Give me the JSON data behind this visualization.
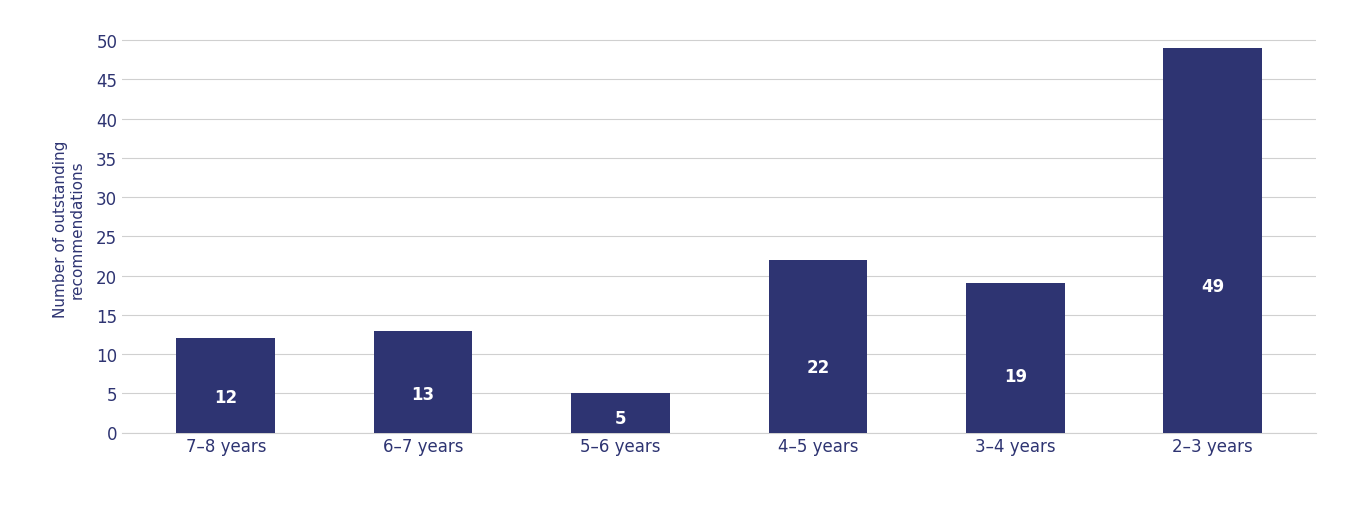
{
  "categories": [
    "7–8 years",
    "6–7 years",
    "5–6 years",
    "4–5 years",
    "3–4 years",
    "2–3 years"
  ],
  "values": [
    12,
    13,
    5,
    22,
    19,
    49
  ],
  "bar_color": "#2e3472",
  "label_color": "#ffffff",
  "ylabel": "Number of outstanding\nrecommendations",
  "ylim": [
    0,
    52
  ],
  "yticks": [
    0,
    5,
    10,
    15,
    20,
    25,
    30,
    35,
    40,
    45,
    50
  ],
  "background_color": "#ffffff",
  "grid_color": "#d0d0d0",
  "axis_label_color": "#2e3472",
  "tick_label_color": "#2e3472",
  "bar_label_fontsize": 12,
  "axis_label_fontsize": 11,
  "tick_label_fontsize": 12,
  "bar_width": 0.5
}
